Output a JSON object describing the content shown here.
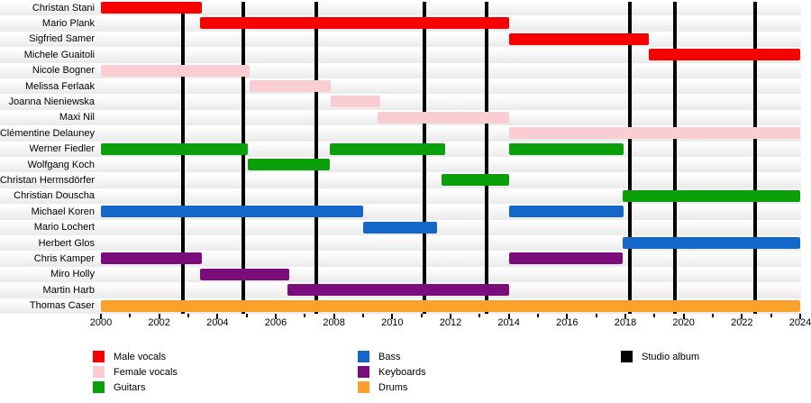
{
  "chart_data": {
    "type": "timeline",
    "title": "",
    "x_axis": {
      "min": 2000,
      "max": 2024,
      "major_step": 2,
      "minor_step": 1,
      "tick_labels": [
        "2000",
        "2002",
        "2004",
        "2006",
        "2008",
        "2010",
        "2012",
        "2014",
        "2016",
        "2018",
        "2020",
        "2022",
        "2024"
      ]
    },
    "roles": {
      "male_vocals": {
        "label": "Male vocals",
        "color": "#f70000"
      },
      "female_vocals": {
        "label": "Female vocals",
        "color": "#f9cdd2"
      },
      "guitars": {
        "label": "Guitars",
        "color": "#0ba00b"
      },
      "bass": {
        "label": "Bass",
        "color": "#1466c8"
      },
      "keyboards": {
        "label": "Keyboards",
        "color": "#7b0c7b"
      },
      "drums": {
        "label": "Drums",
        "color": "#f9a12b"
      },
      "studio_album": {
        "label": "Studio album",
        "color": "#000000"
      }
    },
    "legend_order": [
      "male_vocals",
      "female_vocals",
      "guitars",
      "bass",
      "keyboards",
      "drums",
      "studio_album"
    ],
    "members": [
      {
        "name": "Christan Stani",
        "role": "male_vocals",
        "segments": [
          [
            2000.0,
            2003.45
          ]
        ]
      },
      {
        "name": "Mario Plank",
        "role": "male_vocals",
        "segments": [
          [
            2003.4,
            2014.0
          ]
        ]
      },
      {
        "name": "Sigfried Samer",
        "role": "male_vocals",
        "segments": [
          [
            2014.0,
            2018.8
          ]
        ]
      },
      {
        "name": "Michele Guaitoli",
        "role": "male_vocals",
        "segments": [
          [
            2018.8,
            2024.0
          ]
        ]
      },
      {
        "name": "Nicole Bogner",
        "role": "female_vocals",
        "segments": [
          [
            2000.0,
            2005.1
          ]
        ]
      },
      {
        "name": "Melissa Ferlaak",
        "role": "female_vocals",
        "segments": [
          [
            2005.1,
            2007.9
          ]
        ]
      },
      {
        "name": "Joanna Nieniewska",
        "role": "female_vocals",
        "segments": [
          [
            2007.9,
            2009.6
          ]
        ]
      },
      {
        "name": "Maxi Nil",
        "role": "female_vocals",
        "segments": [
          [
            2009.5,
            2014.0
          ]
        ]
      },
      {
        "name": "Clémentine Delauney",
        "role": "female_vocals",
        "segments": [
          [
            2014.0,
            2024.0
          ]
        ]
      },
      {
        "name": "Werner Fiedler",
        "role": "guitars",
        "segments": [
          [
            2000.0,
            2005.05
          ],
          [
            2007.85,
            2011.8
          ],
          [
            2014.0,
            2017.95
          ]
        ]
      },
      {
        "name": "Wolfgang Koch",
        "role": "guitars",
        "segments": [
          [
            2005.05,
            2007.85
          ]
        ]
      },
      {
        "name": "Christan Hermsdörfer",
        "role": "guitars",
        "segments": [
          [
            2011.7,
            2014.0
          ]
        ]
      },
      {
        "name": "Christian Douscha",
        "role": "guitars",
        "segments": [
          [
            2017.9,
            2024.0
          ]
        ]
      },
      {
        "name": "Michael Koren",
        "role": "bass",
        "segments": [
          [
            2000.0,
            2009.0
          ],
          [
            2014.0,
            2017.95
          ]
        ]
      },
      {
        "name": "Mario Lochert",
        "role": "bass",
        "segments": [
          [
            2009.0,
            2011.55
          ]
        ]
      },
      {
        "name": "Herbert Glos",
        "role": "bass",
        "segments": [
          [
            2017.9,
            2024.0
          ]
        ]
      },
      {
        "name": "Chris Kamper",
        "role": "keyboards",
        "segments": [
          [
            2000.0,
            2003.45
          ],
          [
            2014.0,
            2017.9
          ]
        ]
      },
      {
        "name": "Miro Holly",
        "role": "keyboards",
        "segments": [
          [
            2003.4,
            2006.45
          ]
        ]
      },
      {
        "name": "Martin Harb",
        "role": "keyboards",
        "segments": [
          [
            2006.4,
            2014.0
          ]
        ]
      },
      {
        "name": "Thomas Caser",
        "role": "drums",
        "segments": [
          [
            2000.0,
            2024.0
          ]
        ]
      }
    ],
    "album_lines": [
      2002.8,
      2004.9,
      2007.4,
      2011.1,
      2013.25,
      2018.15,
      2019.7,
      2022.45
    ]
  }
}
